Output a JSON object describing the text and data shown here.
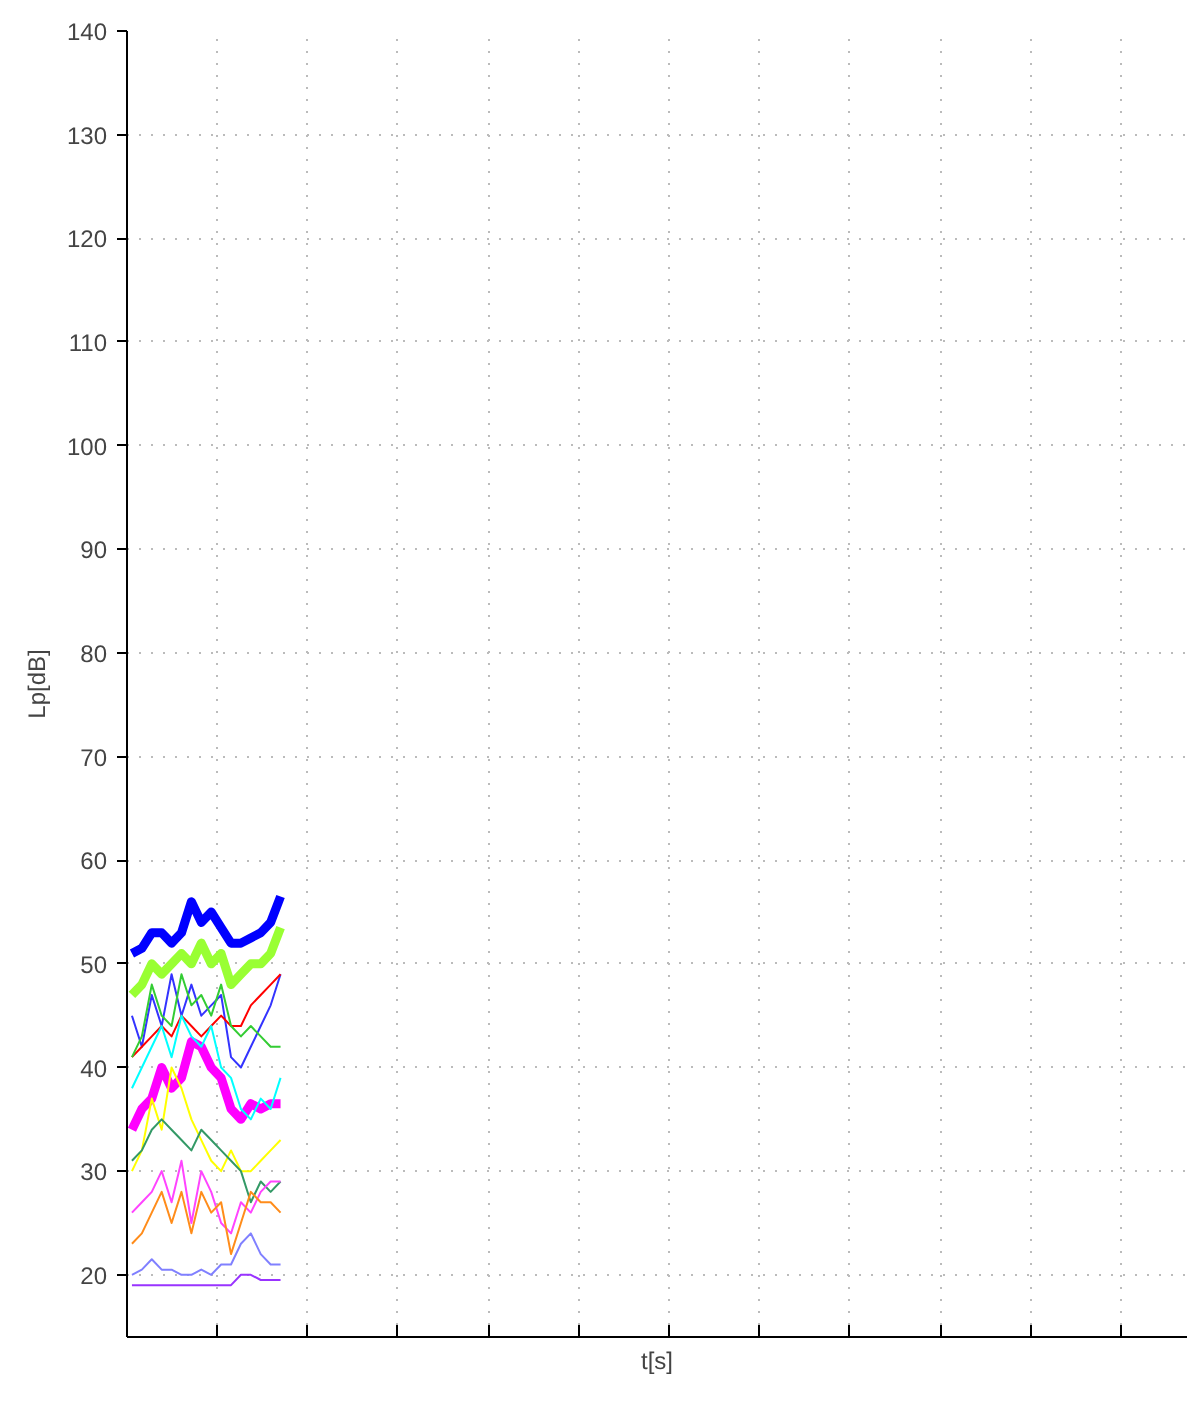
{
  "chart_data": {
    "type": "line",
    "xlabel": "t[s]",
    "ylabel": "Lp[dB]",
    "categories": [
      null,
      null,
      null,
      null,
      null,
      null,
      null,
      null,
      null,
      null,
      null,
      null,
      null,
      null,
      null,
      null,
      null,
      null,
      null,
      null,
      null,
      null,
      null,
      null,
      null,
      null,
      null,
      null,
      null,
      null,
      null,
      null,
      null,
      null,
      null,
      null,
      null,
      null,
      null,
      null,
      null,
      null,
      null,
      null,
      null,
      null,
      null,
      null,
      null,
      null,
      null,
      null,
      null,
      null,
      null,
      null,
      null,
      null,
      null,
      null,
      null,
      null,
      null,
      null,
      null,
      null,
      null,
      null,
      null,
      null,
      null,
      null,
      null,
      null,
      null,
      null,
      null,
      null,
      null,
      null,
      null,
      null,
      null,
      null,
      null,
      null,
      null,
      null,
      null,
      null,
      null,
      null,
      null,
      null,
      null,
      null,
      null,
      null,
      null,
      null,
      null,
      null,
      null,
      null,
      null,
      null,
      null
    ],
    "series": [
      {
        "color": "#0000ff",
        "values": [
          51,
          51.5,
          53,
          53,
          52,
          53,
          56,
          54,
          55,
          53.5,
          52,
          52,
          52.5,
          53,
          54,
          56.5,
          null,
          null,
          null,
          null,
          null,
          null,
          null,
          null,
          null,
          null,
          null,
          null,
          null,
          null,
          null,
          null,
          null,
          null,
          null,
          null,
          null,
          null,
          null,
          null,
          null,
          null,
          null,
          null,
          null,
          null,
          null,
          null,
          null,
          null,
          null,
          null,
          null,
          null,
          null,
          null,
          null,
          null,
          null,
          null,
          null,
          null,
          null,
          null,
          null,
          null,
          null,
          null,
          null,
          null,
          null,
          null,
          null,
          null,
          null,
          null,
          null,
          null,
          null,
          null,
          null,
          null,
          null,
          null,
          null,
          null,
          null,
          null,
          null,
          null,
          null,
          null,
          null,
          null,
          null,
          null,
          null,
          null,
          null,
          null,
          null,
          null,
          null,
          null,
          null,
          null,
          null
        ]
      },
      {
        "color": "#99ff33",
        "values": [
          47,
          48,
          50,
          49,
          50,
          51,
          50,
          52,
          50,
          51,
          48,
          49,
          50,
          50,
          51,
          53.5,
          null,
          null,
          null,
          null,
          null,
          null,
          null,
          null,
          null,
          null,
          null,
          null,
          null,
          null,
          null,
          null,
          null,
          null,
          null,
          null,
          null,
          null,
          null,
          null,
          null,
          null,
          null,
          null,
          null,
          null,
          null,
          null,
          null,
          null,
          null,
          null,
          null,
          null,
          null,
          null,
          null,
          null,
          null,
          null,
          null,
          null,
          null,
          null,
          null,
          null,
          null,
          null,
          null,
          null,
          null,
          null,
          null,
          null,
          null,
          null,
          null,
          null,
          null,
          null,
          null,
          null,
          null,
          null,
          null,
          null,
          null,
          null,
          null,
          null,
          null,
          null,
          null,
          null,
          null,
          null,
          null,
          null,
          null,
          null,
          null,
          null,
          null,
          null,
          null,
          null,
          null
        ]
      },
      {
        "color": "#ff00ff",
        "values": [
          34,
          36,
          37,
          40,
          38,
          39,
          42.5,
          42,
          40,
          39,
          36,
          35,
          36.5,
          36,
          36.5,
          36.5,
          null,
          null,
          null,
          null,
          null,
          null,
          null,
          null,
          null,
          null,
          null,
          null,
          null,
          null,
          null,
          null,
          null,
          null,
          null,
          null,
          null,
          null,
          null,
          null,
          null,
          null,
          null,
          null,
          null,
          null,
          null,
          null,
          null,
          null,
          null,
          null,
          null,
          null,
          null,
          null,
          null,
          null,
          null,
          null,
          null,
          null,
          null,
          null,
          null,
          null,
          null,
          null,
          null,
          null,
          null,
          null,
          null,
          null,
          null,
          null,
          null,
          null,
          null,
          null,
          null,
          null,
          null,
          null,
          null,
          null,
          null,
          null,
          null,
          null,
          null,
          null,
          null,
          null,
          null,
          null,
          null,
          null,
          null,
          null,
          null,
          null,
          null,
          null,
          null,
          null,
          null
        ]
      },
      {
        "color": "#3333ff",
        "values": [
          45,
          42,
          47,
          44,
          49,
          45,
          48,
          45,
          46,
          47,
          41,
          40,
          42,
          44,
          46,
          49,
          null,
          null,
          null,
          null,
          null,
          null,
          null,
          null,
          null,
          null,
          null,
          null,
          null,
          null,
          null,
          null,
          null,
          null,
          null,
          null,
          null,
          null,
          null,
          null,
          null,
          null,
          null,
          null,
          null,
          null,
          null,
          null,
          null,
          null,
          null,
          null,
          null,
          null,
          null,
          null,
          null,
          null,
          null,
          null,
          null,
          null,
          null,
          null,
          null,
          null,
          null,
          null,
          null,
          null,
          null,
          null,
          null,
          null,
          null,
          null,
          null,
          null,
          null,
          null,
          null,
          null,
          null,
          null,
          null,
          null,
          null,
          null,
          null,
          null,
          null,
          null,
          null,
          null,
          null,
          null,
          null,
          null,
          null,
          null,
          null,
          null,
          null,
          null,
          null,
          null,
          null
        ]
      },
      {
        "color": "#ff0000",
        "values": [
          41,
          42,
          43,
          44,
          43,
          45,
          44,
          43,
          44,
          45,
          44,
          44,
          46,
          47,
          48,
          49,
          null,
          null,
          null,
          null,
          null,
          null,
          null,
          null,
          null,
          null,
          null,
          null,
          null,
          null,
          null,
          null,
          null,
          null,
          null,
          null,
          null,
          null,
          null,
          null,
          null,
          null,
          null,
          null,
          null,
          null,
          null,
          null,
          null,
          null,
          null,
          null,
          null,
          null,
          null,
          null,
          null,
          null,
          null,
          null,
          null,
          null,
          null,
          null,
          null,
          null,
          null,
          null,
          null,
          null,
          null,
          null,
          null,
          null,
          null,
          null,
          null,
          null,
          null,
          null,
          null,
          null,
          null,
          null,
          null,
          null,
          null,
          null,
          null,
          null,
          null,
          null,
          null,
          null,
          null,
          null,
          null,
          null,
          null,
          null,
          null,
          null,
          null,
          null,
          null,
          null,
          null
        ]
      },
      {
        "color": "#33cc33",
        "values": [
          41,
          43,
          48,
          45,
          44,
          49,
          46,
          47,
          45,
          48,
          44,
          43,
          44,
          43,
          42,
          42,
          null,
          null,
          null,
          null,
          null,
          null,
          null,
          null,
          null,
          null,
          null,
          null,
          null,
          null,
          null,
          null,
          null,
          null,
          null,
          null,
          null,
          null,
          null,
          null,
          null,
          null,
          null,
          null,
          null,
          null,
          null,
          null,
          null,
          null,
          null,
          null,
          null,
          null,
          null,
          null,
          null,
          null,
          null,
          null,
          null,
          null,
          null,
          null,
          null,
          null,
          null,
          null,
          null,
          null,
          null,
          null,
          null,
          null,
          null,
          null,
          null,
          null,
          null,
          null,
          null,
          null,
          null,
          null,
          null,
          null,
          null,
          null,
          null,
          null,
          null,
          null,
          null,
          null,
          null,
          null,
          null,
          null,
          null,
          null,
          null,
          null,
          null,
          null,
          null,
          null,
          null
        ]
      },
      {
        "color": "#00ffff",
        "values": [
          38,
          40,
          42,
          44,
          41,
          45,
          43,
          42,
          44,
          40,
          39,
          36,
          35,
          37,
          36,
          39,
          null,
          null,
          null,
          null,
          null,
          null,
          null,
          null,
          null,
          null,
          null,
          null,
          null,
          null,
          null,
          null,
          null,
          null,
          null,
          null,
          null,
          null,
          null,
          null,
          null,
          null,
          null,
          null,
          null,
          null,
          null,
          null,
          null,
          null,
          null,
          null,
          null,
          null,
          null,
          null,
          null,
          null,
          null,
          null,
          null,
          null,
          null,
          null,
          null,
          null,
          null,
          null,
          null,
          null,
          null,
          null,
          null,
          null,
          null,
          null,
          null,
          null,
          null,
          null,
          null,
          null,
          null,
          null,
          null,
          null,
          null,
          null,
          null,
          null,
          null,
          null,
          null,
          null,
          null,
          null,
          null,
          null,
          null,
          null,
          null,
          null,
          null,
          null,
          null,
          null,
          null
        ]
      },
      {
        "color": "#ffff00",
        "values": [
          30,
          32,
          37,
          34,
          40,
          38,
          35,
          33,
          31,
          30,
          32,
          30,
          30,
          31,
          32,
          33,
          null,
          null,
          null,
          null,
          null,
          null,
          null,
          null,
          null,
          null,
          null,
          null,
          null,
          null,
          null,
          null,
          null,
          null,
          null,
          null,
          null,
          null,
          null,
          null,
          null,
          null,
          null,
          null,
          null,
          null,
          null,
          null,
          null,
          null,
          null,
          null,
          null,
          null,
          null,
          null,
          null,
          null,
          null,
          null,
          null,
          null,
          null,
          null,
          null,
          null,
          null,
          null,
          null,
          null,
          null,
          null,
          null,
          null,
          null,
          null,
          null,
          null,
          null,
          null,
          null,
          null,
          null,
          null,
          null,
          null,
          null,
          null,
          null,
          null,
          null,
          null,
          null,
          null,
          null,
          null,
          null,
          null,
          null,
          null,
          null,
          null,
          null,
          null,
          null,
          null,
          null
        ]
      },
      {
        "color": "#339966",
        "values": [
          31,
          32,
          34,
          35,
          34,
          33,
          32,
          34,
          33,
          32,
          31,
          30,
          27,
          29,
          28,
          29,
          null,
          null,
          null,
          null,
          null,
          null,
          null,
          null,
          null,
          null,
          null,
          null,
          null,
          null,
          null,
          null,
          null,
          null,
          null,
          null,
          null,
          null,
          null,
          null,
          null,
          null,
          null,
          null,
          null,
          null,
          null,
          null,
          null,
          null,
          null,
          null,
          null,
          null,
          null,
          null,
          null,
          null,
          null,
          null,
          null,
          null,
          null,
          null,
          null,
          null,
          null,
          null,
          null,
          null,
          null,
          null,
          null,
          null,
          null,
          null,
          null,
          null,
          null,
          null,
          null,
          null,
          null,
          null,
          null,
          null,
          null,
          null,
          null,
          null,
          null,
          null,
          null,
          null,
          null,
          null,
          null,
          null,
          null,
          null,
          null,
          null,
          null,
          null,
          null,
          null,
          null
        ]
      },
      {
        "color": "#ff44ff",
        "values": [
          26,
          27,
          28,
          30,
          27,
          31,
          25,
          30,
          28,
          25,
          24,
          27,
          26,
          28,
          29,
          29,
          null,
          null,
          null,
          null,
          null,
          null,
          null,
          null,
          null,
          null,
          null,
          null,
          null,
          null,
          null,
          null,
          null,
          null,
          null,
          null,
          null,
          null,
          null,
          null,
          null,
          null,
          null,
          null,
          null,
          null,
          null,
          null,
          null,
          null,
          null,
          null,
          null,
          null,
          null,
          null,
          null,
          null,
          null,
          null,
          null,
          null,
          null,
          null,
          null,
          null,
          null,
          null,
          null,
          null,
          null,
          null,
          null,
          null,
          null,
          null,
          null,
          null,
          null,
          null,
          null,
          null,
          null,
          null,
          null,
          null,
          null,
          null,
          null,
          null,
          null,
          null,
          null,
          null,
          null,
          null,
          null,
          null,
          null,
          null,
          null,
          null,
          null,
          null,
          null,
          null,
          null
        ]
      },
      {
        "color": "#ff8c1a",
        "values": [
          23,
          24,
          26,
          28,
          25,
          28,
          24,
          28,
          26,
          27,
          22,
          25,
          28,
          27,
          27,
          26,
          null,
          null,
          null,
          null,
          null,
          null,
          null,
          null,
          null,
          null,
          null,
          null,
          null,
          null,
          null,
          null,
          null,
          null,
          null,
          null,
          null,
          null,
          null,
          null,
          null,
          null,
          null,
          null,
          null,
          null,
          null,
          null,
          null,
          null,
          null,
          null,
          null,
          null,
          null,
          null,
          null,
          null,
          null,
          null,
          null,
          null,
          null,
          null,
          null,
          null,
          null,
          null,
          null,
          null,
          null,
          null,
          null,
          null,
          null,
          null,
          null,
          null,
          null,
          null,
          null,
          null,
          null,
          null,
          null,
          null,
          null,
          null,
          null,
          null,
          null,
          null,
          null,
          null,
          null,
          null,
          null,
          null,
          null,
          null,
          null,
          null,
          null,
          null,
          null,
          null,
          null
        ]
      },
      {
        "color": "#8080ff",
        "values": [
          20,
          20.5,
          21.5,
          20.5,
          20.5,
          20,
          20,
          20.5,
          20,
          21,
          21,
          23,
          24,
          22,
          21,
          21,
          null,
          null,
          null,
          null,
          null,
          null,
          null,
          null,
          null,
          null,
          null,
          null,
          null,
          null,
          null,
          null,
          null,
          null,
          null,
          null,
          null,
          null,
          null,
          null,
          null,
          null,
          null,
          null,
          null,
          null,
          null,
          null,
          null,
          null,
          null,
          null,
          null,
          null,
          null,
          null,
          null,
          null,
          null,
          null,
          null,
          null,
          null,
          null,
          null,
          null,
          null,
          null,
          null,
          null,
          null,
          null,
          null,
          null,
          null,
          null,
          null,
          null,
          null,
          null,
          null,
          null,
          null,
          null,
          null,
          null,
          null,
          null,
          null,
          null,
          null,
          null,
          null,
          null,
          null,
          null,
          null,
          null,
          null,
          null,
          null,
          null,
          null,
          null,
          null,
          null,
          null
        ]
      },
      {
        "color": "#9933ff",
        "values": [
          19,
          19,
          19,
          19,
          19,
          19,
          19,
          19,
          19,
          19,
          19,
          20,
          20,
          19.5,
          19.5,
          19.5,
          null,
          null,
          null,
          null,
          null,
          null,
          null,
          null,
          null,
          null,
          null,
          null,
          null,
          null,
          null,
          null,
          null,
          null,
          null,
          null,
          null,
          null,
          null,
          null,
          null,
          null,
          null,
          null,
          null,
          null,
          null,
          null,
          null,
          null,
          null,
          null,
          null,
          null,
          null,
          null,
          null,
          null,
          null,
          null,
          null,
          null,
          null,
          null,
          null,
          null,
          null,
          null,
          null,
          null,
          null,
          null,
          null,
          null,
          null,
          null,
          null,
          null,
          null,
          null,
          null,
          null,
          null,
          null,
          null,
          null,
          null,
          null,
          null,
          null,
          null,
          null,
          null,
          null,
          null,
          null,
          null,
          null,
          null,
          null,
          null,
          null,
          null,
          null,
          null,
          null,
          null
        ]
      }
    ],
    "ylim": [
      14,
      140
    ],
    "yticks": [
      20,
      30,
      40,
      50,
      60,
      70,
      80,
      90,
      100,
      110,
      120,
      130,
      140
    ],
    "tick_labels": "y",
    "grid": true,
    "marker": "none",
    "line_style": "solid"
  }
}
